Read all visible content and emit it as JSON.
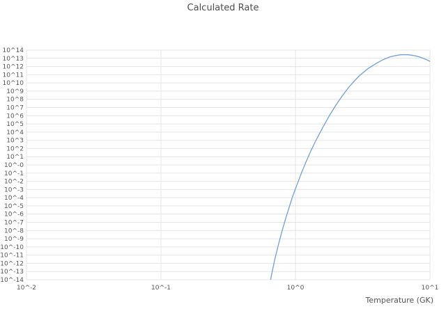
{
  "title": "Calculated Rate",
  "xlabel": "Temperature (GK)",
  "colors": {
    "line": "#6f9fd8",
    "grid": "#e4e4e4",
    "text": "#555555",
    "background": "#ffffff"
  },
  "chart_data": {
    "type": "line",
    "title": "Calculated Rate",
    "xlabel": "Temperature (GK)",
    "ylabel": "",
    "x_scale": "log",
    "y_scale": "log",
    "legend": "none",
    "grid": "on",
    "xlim_exp": [
      -2,
      1
    ],
    "ylim_exp": [
      -14,
      14
    ],
    "x_ticks": [
      {
        "label": "10^-2",
        "exp": -2
      },
      {
        "label": "10^-1",
        "exp": -1
      },
      {
        "label": "10^0",
        "exp": 0
      },
      {
        "label": "10^1",
        "exp": 1
      }
    ],
    "y_ticks": [
      {
        "label": "10^14",
        "exp": 14
      },
      {
        "label": "10^13",
        "exp": 13
      },
      {
        "label": "10^12",
        "exp": 12
      },
      {
        "label": "10^11",
        "exp": 11
      },
      {
        "label": "10^10",
        "exp": 10
      },
      {
        "label": "10^9",
        "exp": 9
      },
      {
        "label": "10^8",
        "exp": 8
      },
      {
        "label": "10^7",
        "exp": 7
      },
      {
        "label": "10^6",
        "exp": 6
      },
      {
        "label": "10^5",
        "exp": 5
      },
      {
        "label": "10^4",
        "exp": 4
      },
      {
        "label": "10^3",
        "exp": 3
      },
      {
        "label": "10^2",
        "exp": 2
      },
      {
        "label": "10^1",
        "exp": 1
      },
      {
        "label": "10^-0",
        "exp": 0
      },
      {
        "label": "10^-1",
        "exp": -1
      },
      {
        "label": "10^-2",
        "exp": -2
      },
      {
        "label": "10^-3",
        "exp": -3
      },
      {
        "label": "10^-4",
        "exp": -4
      },
      {
        "label": "10^-5",
        "exp": -5
      },
      {
        "label": "10^-6",
        "exp": -6
      },
      {
        "label": "10^-7",
        "exp": -7
      },
      {
        "label": "10^-8",
        "exp": -8
      },
      {
        "label": "10^-9",
        "exp": -9
      },
      {
        "label": "10^-10",
        "exp": -10
      },
      {
        "label": "10^-11",
        "exp": -11
      },
      {
        "label": "10^-12",
        "exp": -12
      },
      {
        "label": "10^-13",
        "exp": -13
      },
      {
        "label": "10^-14",
        "exp": -14
      }
    ],
    "series": [
      {
        "name": "Calculated Rate",
        "points_T_log10rate": [
          [
            0.6,
            -17.5
          ],
          [
            0.63,
            -15.5
          ],
          [
            0.66,
            -13.6
          ],
          [
            0.7,
            -11.6
          ],
          [
            0.75,
            -9.6
          ],
          [
            0.8,
            -7.9
          ],
          [
            0.85,
            -6.4
          ],
          [
            0.9,
            -5.1
          ],
          [
            0.95,
            -3.9
          ],
          [
            1.0,
            -2.9
          ],
          [
            1.1,
            -1.1
          ],
          [
            1.2,
            0.4
          ],
          [
            1.3,
            1.7
          ],
          [
            1.4,
            2.8
          ],
          [
            1.6,
            4.6
          ],
          [
            1.8,
            6.1
          ],
          [
            2.0,
            7.3
          ],
          [
            2.2,
            8.3
          ],
          [
            2.5,
            9.5
          ],
          [
            2.8,
            10.4
          ],
          [
            3.0,
            10.9
          ],
          [
            3.5,
            11.8
          ],
          [
            4.0,
            12.4
          ],
          [
            4.5,
            12.85
          ],
          [
            5.0,
            13.15
          ],
          [
            5.5,
            13.32
          ],
          [
            6.0,
            13.42
          ],
          [
            6.5,
            13.45
          ],
          [
            7.0,
            13.42
          ],
          [
            7.5,
            13.35
          ],
          [
            8.0,
            13.25
          ],
          [
            8.5,
            13.12
          ],
          [
            9.0,
            12.97
          ],
          [
            9.5,
            12.8
          ],
          [
            10.0,
            12.62
          ]
        ]
      }
    ]
  }
}
